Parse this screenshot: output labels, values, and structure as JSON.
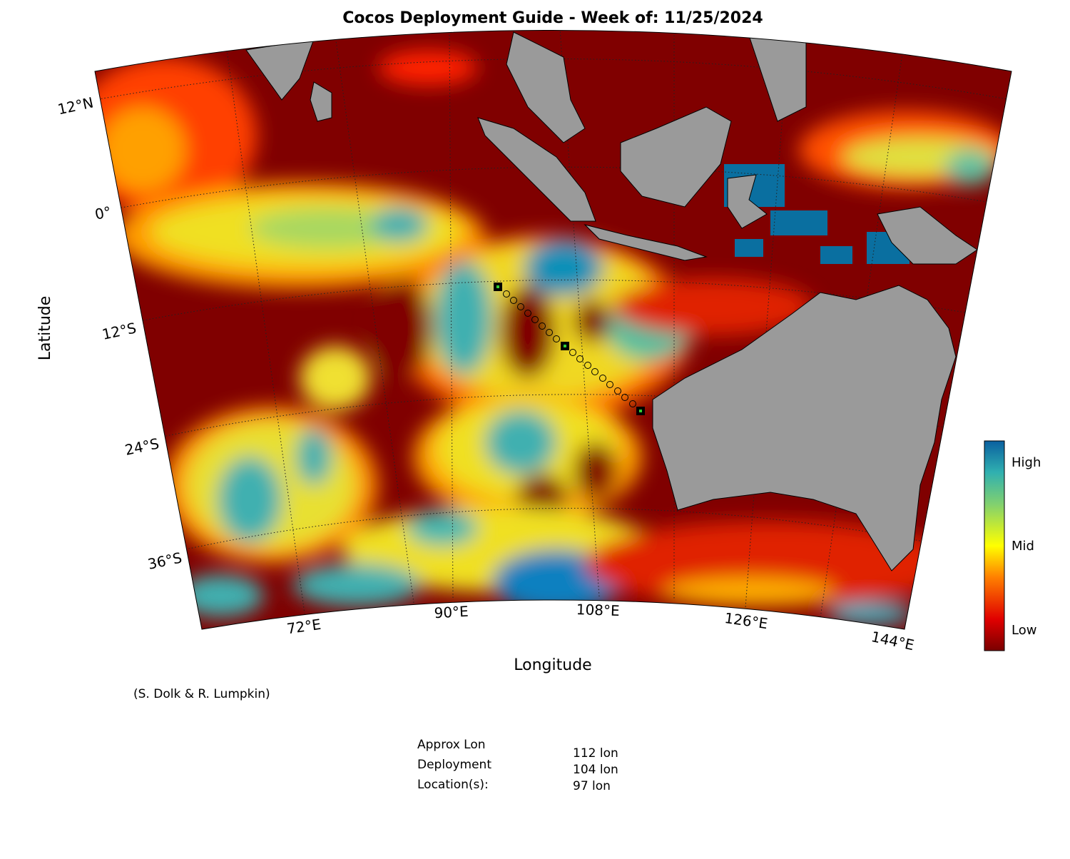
{
  "title": "Cocos Deployment Guide - Week of: 11/25/2024",
  "map": {
    "x_label": "Longitude",
    "y_label": "Latitude",
    "lat_labels": [
      "12°N",
      "0°",
      "12°S",
      "24°S",
      "36°S"
    ],
    "lon_labels": [
      "72°E",
      "90°E",
      "108°E",
      "126°E",
      "144°E"
    ]
  },
  "colorbar": {
    "labels": [
      "High",
      "Mid",
      "Low"
    ]
  },
  "credit": "(S. Dolk & R. Lumpkin)",
  "deployment": {
    "header": [
      "Approx Lon",
      "Deployment",
      "Location(s):"
    ],
    "locations": [
      "112 lon",
      "104 lon",
      "97 lon"
    ]
  }
}
